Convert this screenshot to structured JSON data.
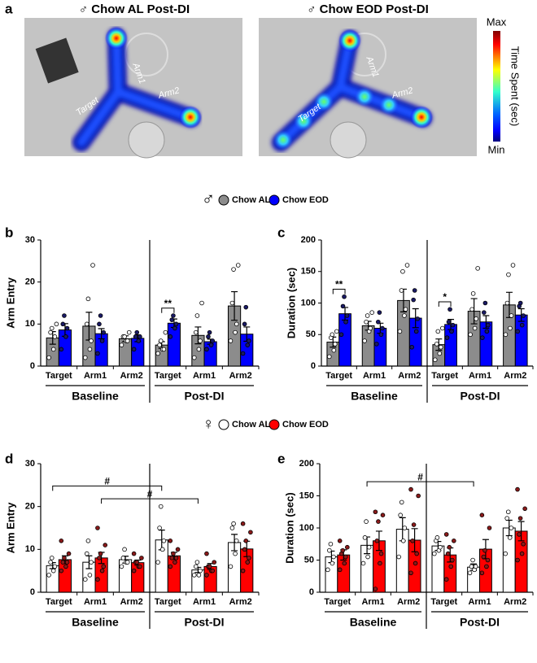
{
  "panel_a": {
    "label": "a",
    "images": [
      {
        "title": "♂ Chow AL Post-DI",
        "labels": [
          "Target",
          "Arm1",
          "Arm2"
        ]
      },
      {
        "title": "♂ Chow EOD Post-DI",
        "labels": [
          "Target",
          "Arm1",
          "Arm2"
        ]
      }
    ],
    "colorbar": {
      "max": "Max",
      "min": "Min",
      "label": "Time Spent (sec)"
    }
  },
  "male_symbol": "♂",
  "female_symbol": "♀",
  "chart_data": [
    {
      "type": "bar",
      "label": "b",
      "y_label": "Arm Entry",
      "categories": [
        "Target",
        "Arm1",
        "Arm2",
        "Target",
        "Arm1",
        "Arm2"
      ],
      "groups": [
        "Baseline",
        "Post-DI"
      ],
      "ylim": [
        0,
        30
      ],
      "yticks": [
        0,
        10,
        20,
        30
      ],
      "series": [
        {
          "name": "Chow AL",
          "color": "#8c8c8c",
          "point_color": "#ffffff",
          "values": [
            6.7,
            9.5,
            6.5,
            5,
            7.3,
            14.3
          ],
          "errors": [
            1.5,
            3.3,
            0.7,
            0.8,
            2,
            3.4
          ],
          "points": [
            [
              2,
              4,
              7,
              8,
              9,
              10
            ],
            [
              2,
              4,
              6,
              10,
              16,
              24
            ],
            [
              5,
              6,
              6,
              7,
              7,
              8
            ],
            [
              3,
              4,
              4,
              5,
              6,
              8
            ],
            [
              2,
              4,
              6,
              8,
              12,
              15
            ],
            [
              6,
              8,
              10,
              15,
              23,
              24
            ]
          ]
        },
        {
          "name": "Chow EOD",
          "color": "#0000ff",
          "point_color": "#1a1a66",
          "values": [
            8.6,
            7.7,
            6.6,
            10.2,
            5.8,
            7.6
          ],
          "errors": [
            1.5,
            1.2,
            0.8,
            1,
            0.6,
            1.7
          ],
          "points": [
            [
              4,
              7,
              9,
              10,
              12
            ],
            [
              3,
              6,
              8,
              10,
              12
            ],
            [
              4,
              6,
              7,
              7,
              8
            ],
            [
              7,
              9,
              10,
              11,
              12
            ],
            [
              4,
              5,
              6,
              7,
              8
            ],
            [
              3,
              5,
              6,
              10,
              14
            ]
          ]
        }
      ],
      "annotations": [
        {
          "label": "**",
          "from": [
            3,
            0
          ],
          "to": [
            3,
            1
          ]
        }
      ]
    },
    {
      "type": "bar",
      "label": "c",
      "y_label": "Duration (sec)",
      "categories": [
        "Target",
        "Arm1",
        "Arm2",
        "Target",
        "Arm1",
        "Arm2"
      ],
      "groups": [
        "Baseline",
        "Post-DI"
      ],
      "ylim": [
        0,
        200
      ],
      "yticks": [
        0,
        50,
        100,
        150,
        200
      ],
      "series": [
        {
          "name": "Chow AL",
          "color": "#8c8c8c",
          "point_color": "#ffffff",
          "values": [
            38,
            64,
            104,
            34,
            87,
            97
          ],
          "errors": [
            8,
            7,
            18,
            9,
            20,
            20
          ],
          "points": [
            [
              15,
              25,
              35,
              45,
              50,
              55
            ],
            [
              40,
              55,
              60,
              70,
              80,
              85
            ],
            [
              55,
              80,
              90,
              120,
              150,
              160
            ],
            [
              10,
              20,
              30,
              35,
              55,
              60
            ],
            [
              50,
              60,
              75,
              90,
              115,
              155
            ],
            [
              50,
              60,
              80,
              100,
              145,
              160
            ]
          ]
        },
        {
          "name": "Chow EOD",
          "color": "#0000ff",
          "point_color": "#1a1a66",
          "values": [
            83,
            60,
            76,
            66,
            70,
            81
          ],
          "errors": [
            10,
            8,
            15,
            8,
            10,
            10
          ],
          "points": [
            [
              50,
              70,
              80,
              95,
              110
            ],
            [
              35,
              50,
              60,
              70,
              85
            ],
            [
              30,
              55,
              75,
              105,
              120
            ],
            [
              45,
              55,
              65,
              70,
              90
            ],
            [
              45,
              55,
              65,
              85,
              100
            ],
            [
              55,
              65,
              80,
              95,
              100
            ]
          ]
        }
      ],
      "annotations": [
        {
          "label": "**",
          "from": [
            0,
            0
          ],
          "to": [
            0,
            1
          ]
        },
        {
          "label": "*",
          "from": [
            3,
            0
          ],
          "to": [
            3,
            1
          ]
        }
      ]
    },
    {
      "type": "bar",
      "label": "d",
      "y_label": "Arm Entry",
      "categories": [
        "Target",
        "Arm1",
        "Arm2",
        "Target",
        "Arm1",
        "Arm2"
      ],
      "groups": [
        "Baseline",
        "Post-DI"
      ],
      "ylim": [
        0,
        30
      ],
      "yticks": [
        0,
        10,
        20,
        30
      ],
      "series": [
        {
          "name": "Chow AL",
          "color": "#ffffff",
          "point_color": "#ffffff",
          "values": [
            6.2,
            7,
            7.6,
            12.2,
            5.2,
            11.6
          ],
          "errors": [
            0.7,
            1.5,
            0.8,
            2.3,
            0.6,
            1.9
          ],
          "points": [
            [
              4,
              5,
              6,
              7,
              8
            ],
            [
              3,
              4,
              7,
              9,
              12
            ],
            [
              6,
              7,
              7,
              8,
              10
            ],
            [
              7,
              10,
              12,
              15,
              20
            ],
            [
              4,
              4,
              5,
              6,
              7
            ],
            [
              6,
              9,
              12,
              15,
              16
            ]
          ]
        },
        {
          "name": "Chow EOD",
          "color": "#ff0000",
          "point_color": "#8b1a1a",
          "values": [
            7.6,
            8,
            6.9,
            8.5,
            6,
            10.1
          ],
          "errors": [
            0.9,
            1.3,
            0.6,
            0.8,
            0.7,
            1.8
          ],
          "points": [
            [
              5,
              6,
              7,
              7,
              8,
              9,
              12
            ],
            [
              3,
              5,
              6,
              8,
              9,
              11,
              15
            ],
            [
              5,
              6,
              6,
              7,
              7,
              8,
              9
            ],
            [
              6,
              7,
              8,
              8,
              9,
              10,
              12
            ],
            [
              4,
              5,
              5,
              6,
              6,
              7,
              9
            ],
            [
              5,
              7,
              8,
              10,
              12,
              14,
              16
            ]
          ]
        }
      ],
      "annotations": [
        {
          "label": "#",
          "from": [
            0,
            0
          ],
          "to": [
            3,
            0
          ]
        },
        {
          "label": "#",
          "from": [
            1,
            1
          ],
          "to": [
            4,
            0
          ]
        }
      ]
    },
    {
      "type": "bar",
      "label": "e",
      "y_label": "Duration (sec)",
      "categories": [
        "Target",
        "Arm1",
        "Arm2",
        "Target",
        "Arm1",
        "Arm2"
      ],
      "groups": [
        "Baseline",
        "Post-DI"
      ],
      "ylim": [
        0,
        200
      ],
      "yticks": [
        0,
        50,
        100,
        150,
        200
      ],
      "series": [
        {
          "name": "Chow AL",
          "color": "#ffffff",
          "point_color": "#ffffff",
          "values": [
            55,
            73,
            98,
            72,
            39,
            100
          ],
          "errors": [
            9,
            13,
            18,
            7,
            5,
            12
          ],
          "points": [
            [
              35,
              45,
              55,
              65,
              75
            ],
            [
              45,
              55,
              70,
              85,
              110
            ],
            [
              55,
              80,
              100,
              120,
              140
            ],
            [
              60,
              65,
              70,
              80,
              85
            ],
            [
              30,
              35,
              40,
              40,
              50
            ],
            [
              60,
              85,
              100,
              115,
              125
            ]
          ]
        },
        {
          "name": "Chow EOD",
          "color": "#ff0000",
          "point_color": "#8b1a1a",
          "values": [
            58,
            80,
            81,
            58,
            67,
            95
          ],
          "errors": [
            8,
            15,
            18,
            11,
            15,
            15
          ],
          "points": [
            [
              35,
              45,
              55,
              60,
              65,
              70,
              80
            ],
            [
              5,
              45,
              60,
              80,
              110,
              120,
              125
            ],
            [
              30,
              45,
              60,
              80,
              105,
              150,
              160
            ],
            [
              20,
              40,
              50,
              60,
              70,
              80,
              90
            ],
            [
              30,
              40,
              50,
              55,
              65,
              100,
              120
            ],
            [
              50,
              60,
              75,
              90,
              115,
              130,
              160
            ]
          ]
        }
      ],
      "annotations": [
        {
          "label": "#",
          "from": [
            1,
            0
          ],
          "to": [
            4,
            0
          ]
        }
      ]
    }
  ]
}
